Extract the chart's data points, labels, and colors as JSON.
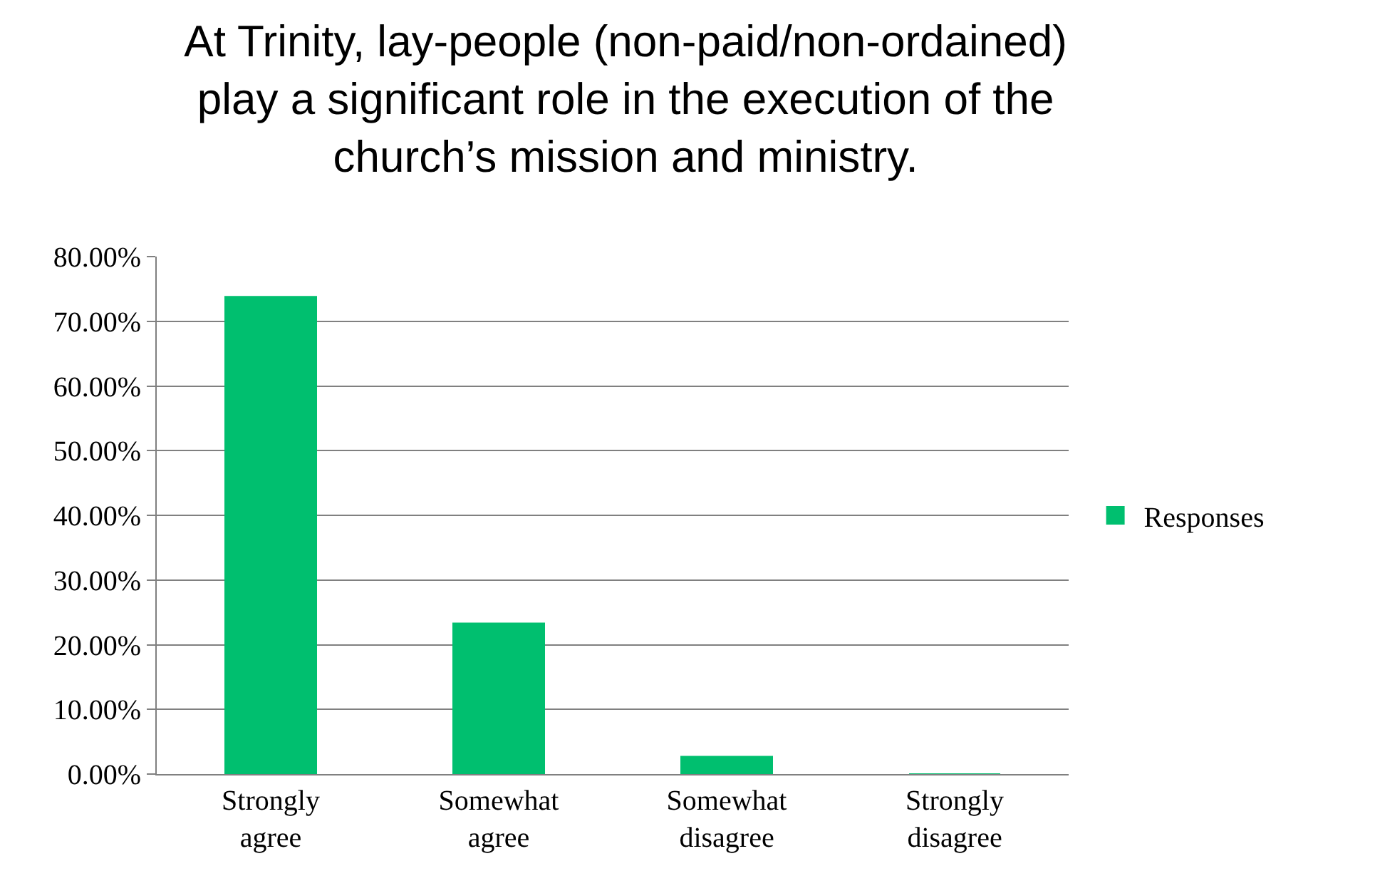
{
  "chart_data": {
    "type": "bar",
    "title": "At Trinity, lay-people (non-paid/non-ordained)\nplay a significant role in the execution of the\nchurch’s mission and ministry.",
    "categories": [
      "Strongly\nagree",
      "Somewhat\nagree",
      "Somewhat\ndisagree",
      "Strongly\ndisagree"
    ],
    "series": [
      {
        "name": "Responses",
        "color": "#00bf6f",
        "values": [
          73.8,
          23.3,
          2.7,
          0
        ]
      }
    ],
    "ylim": [
      0,
      80
    ],
    "yticks": [
      {
        "value": 0,
        "label": "0.00%"
      },
      {
        "value": 10,
        "label": "10.00%"
      },
      {
        "value": 20,
        "label": "20.00%"
      },
      {
        "value": 30,
        "label": "30.00%"
      },
      {
        "value": 40,
        "label": "40.00%"
      },
      {
        "value": 50,
        "label": "50.00%"
      },
      {
        "value": 60,
        "label": "60.00%"
      },
      {
        "value": 70,
        "label": "70.00%"
      },
      {
        "value": 80,
        "label": "80.00%"
      }
    ],
    "grid": "y",
    "legend": "right"
  }
}
